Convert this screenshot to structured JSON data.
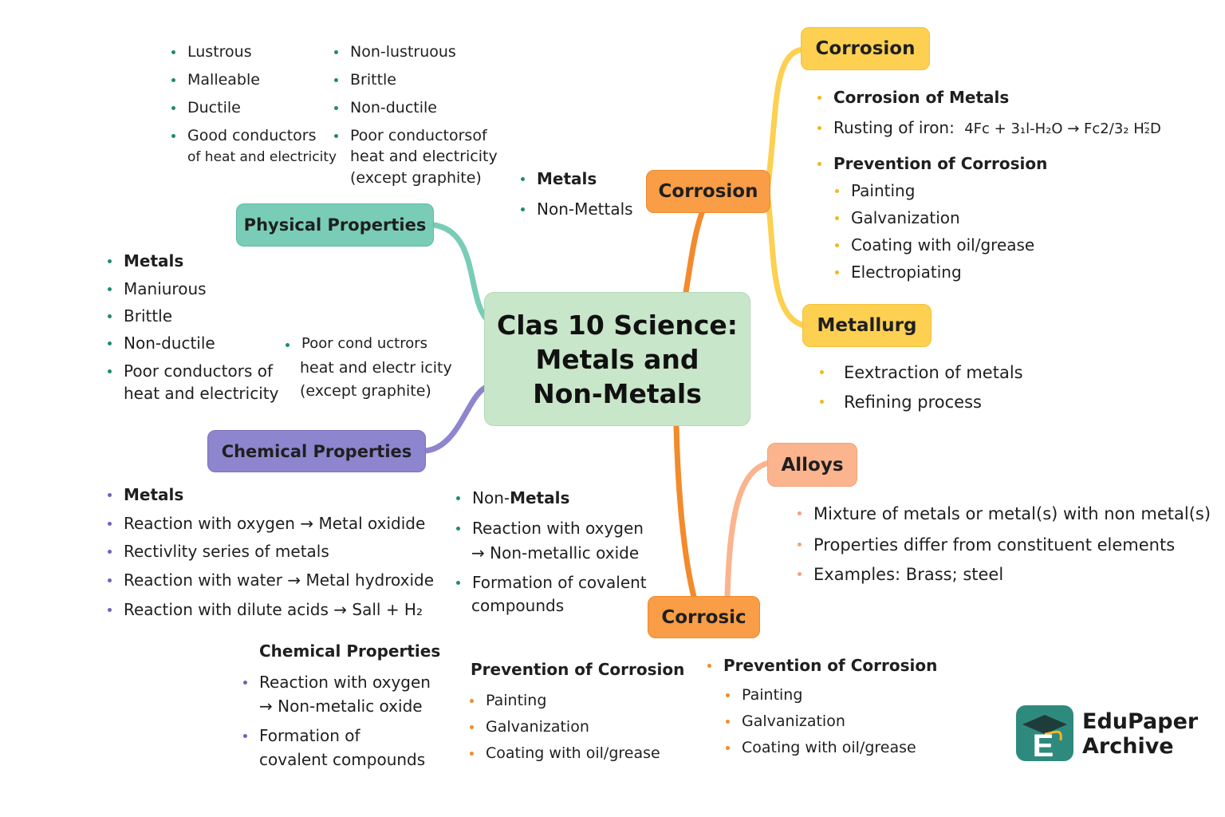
{
  "title_lines": [
    "Clas 10 Science:",
    "Metals and",
    "Non-Metals"
  ],
  "nodes": {
    "physical": "Physical Properties",
    "chemical": "Chemical Properties",
    "corrosion_mid": "Corrosion",
    "corrosion_top": "Corrosion",
    "metallurgy": "Metallurg",
    "alloys": "Alloys",
    "corrosic": "Corrosic"
  },
  "phys_metals": [
    "Lustrous",
    "Malleable",
    "Ductile",
    "Good conductors"
  ],
  "phys_metals_cont": "of heat and electricity",
  "phys_nonmetals": [
    "Non-lustruous",
    "Brittle",
    "Non-ductile",
    "Poor conductorsof"
  ],
  "phys_nonmetals_cont": [
    "heat and electricity",
    "(except graphite)"
  ],
  "mid_list": [
    "Metals",
    "Non-Mettals"
  ],
  "left_metals": [
    "Metals",
    "Maniurous",
    "Brittle",
    "Non-ductile",
    "Poor conductors of"
  ],
  "left_metals_cont": "heat and electricity",
  "left_poor": "Poor cond uctrors",
  "left_poor_cont": [
    "heat and electr icity",
    "(except graphite)"
  ],
  "corrosion_list": {
    "heading": "Corrosion of Metals",
    "rusting": "Rusting of iron:",
    "formula": "4Fc + 3₁l-H₂O → Fc2/3₂ H₂̃D",
    "prevention": "Prevention of Corrosion",
    "methods": [
      "Painting",
      "Galvanization",
      "Coating with oil/grease",
      "Electropiating"
    ]
  },
  "metallurgy_list": [
    "Eextraction of metals",
    "Refining process"
  ],
  "alloys_list": [
    "Mixture of metals or metal(s) with non metal(s)",
    "Properties differ from constituent elements",
    "Examples: Brass; steel"
  ],
  "chem_metals": [
    "Metals",
    "Reaction with oxygen → Metal oxidide",
    "Rectivlity series of metals",
    "Reaction with water → Metal hydroxide",
    "Reaction with dilute acids → Sall + H₂"
  ],
  "chem_nonmetals": {
    "prefix": "Non-",
    "heading": "Metals",
    "r1": "Reaction with oxygen",
    "r1b": "→ Non-metallic oxide",
    "r2": "Formation of covalent",
    "r2b": "compounds"
  },
  "chem_bottom": {
    "heading": "Chemical Properties",
    "r1": "Reaction with oxygen",
    "r1b": "→ Non-metalic oxide",
    "r2": "Formation of",
    "r2b": "covalent compounds"
  },
  "prev_a": {
    "heading": "Prevention of Corrosion",
    "items": [
      "Painting",
      "Galvanization",
      "Coating with oil/grease"
    ]
  },
  "prev_b": {
    "heading": "Prevention of Corrosion",
    "items": [
      "Painting",
      "Galvanization",
      "Coating with oil/grease"
    ]
  },
  "logo": {
    "letter": "E",
    "line1": "EduPaper",
    "line2": "Archive"
  },
  "colors": {
    "teal": "#79cdb6",
    "purple": "#8e85cf",
    "orange": "#f99d47",
    "yellow": "#fdd052",
    "salmon": "#fbb48d",
    "central": "#c8e6c9"
  }
}
